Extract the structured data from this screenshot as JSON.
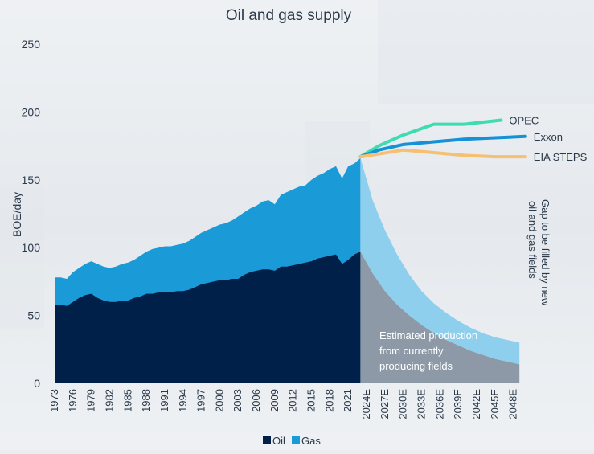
{
  "chart_data": {
    "type": "area",
    "title": "Oil and gas supply",
    "ylabel": "BOE/day",
    "xlabel": "",
    "ylim": [
      0,
      250
    ],
    "yticks": [
      0,
      50,
      100,
      150,
      200,
      250
    ],
    "x_labels": [
      "1973",
      "1976",
      "1979",
      "1982",
      "1985",
      "1988",
      "1991",
      "1994",
      "1997",
      "2000",
      "2003",
      "2006",
      "2009",
      "2012",
      "2015",
      "2018",
      "2021",
      "2024E",
      "2027E",
      "2030E",
      "2033E",
      "2036E",
      "2039E",
      "2042E",
      "2045E",
      "2048E"
    ],
    "historical": {
      "years": [
        1973,
        1974,
        1975,
        1976,
        1977,
        1978,
        1979,
        1980,
        1981,
        1982,
        1983,
        1984,
        1985,
        1986,
        1987,
        1988,
        1989,
        1990,
        1991,
        1992,
        1993,
        1994,
        1995,
        1996,
        1997,
        1998,
        1999,
        2000,
        2001,
        2002,
        2003,
        2004,
        2005,
        2006,
        2007,
        2008,
        2009,
        2010,
        2011,
        2012,
        2013,
        2014,
        2015,
        2016,
        2017,
        2018,
        2019,
        2020,
        2021,
        2022,
        2023
      ],
      "oil": [
        58,
        58,
        57,
        60,
        63,
        65,
        66,
        63,
        61,
        60,
        60,
        61,
        61,
        63,
        64,
        66,
        66,
        67,
        67,
        67,
        68,
        68,
        69,
        71,
        73,
        74,
        75,
        76,
        76,
        77,
        77,
        80,
        82,
        83,
        84,
        84,
        83,
        86,
        86,
        87,
        88,
        89,
        90,
        92,
        93,
        94,
        95,
        88,
        91,
        95,
        97
      ],
      "total": [
        78,
        78,
        77,
        82,
        85,
        88,
        90,
        88,
        86,
        85,
        86,
        88,
        89,
        91,
        94,
        97,
        99,
        100,
        101,
        101,
        102,
        103,
        105,
        108,
        111,
        113,
        115,
        117,
        118,
        120,
        123,
        126,
        129,
        131,
        134,
        135,
        132,
        139,
        141,
        143,
        145,
        146,
        150,
        153,
        155,
        158,
        160,
        151,
        160,
        162,
        166
      ]
    },
    "projection": {
      "x": [
        2023,
        2025,
        2027,
        2029,
        2031,
        2033,
        2035,
        2037,
        2039,
        2041,
        2043,
        2045,
        2047,
        2049
      ],
      "producing_fields": [
        97,
        81,
        68,
        58,
        50,
        43,
        37,
        32,
        28,
        24,
        21,
        18,
        16,
        14
      ],
      "estimated_top": [
        166,
        135,
        113,
        95,
        80,
        68,
        59,
        52,
        46,
        41,
        37,
        34,
        32,
        30
      ]
    },
    "outlooks": [
      {
        "name": "OPEC",
        "color": "#3ddcb2",
        "x": [
          2023,
          2026,
          2030,
          2035,
          2040,
          2046
        ],
        "values": [
          167,
          175,
          183,
          191,
          191,
          194
        ]
      },
      {
        "name": "Exxon",
        "color": "#1591d6",
        "x": [
          2023,
          2026,
          2030,
          2035,
          2040,
          2045,
          2050
        ],
        "values": [
          167,
          172,
          176,
          178,
          180,
          181,
          182
        ]
      },
      {
        "name": "EIA STEPS",
        "color": "#f5c072",
        "x": [
          2023,
          2026,
          2030,
          2035,
          2040,
          2045,
          2050
        ],
        "values": [
          167,
          169,
          172,
          170,
          168,
          167,
          167
        ]
      }
    ],
    "annotations": {
      "gap": "Gap to be filled by new oil and gas fields",
      "gap_lines": [
        "Gap to be filled by new",
        "oil and gas fields"
      ],
      "estimated": [
        "Estimated production",
        "from currently",
        "producing fields"
      ]
    },
    "legend": [
      {
        "label": "Oil",
        "color": "#00204a"
      },
      {
        "label": "Gas",
        "color": "#1a9bd7"
      }
    ],
    "legend_position": "bottom",
    "colors": {
      "oil": "#00204a",
      "gas": "#1a9bd7",
      "producing_fields": "#8d99a7",
      "gap": "#8ecfee"
    }
  }
}
